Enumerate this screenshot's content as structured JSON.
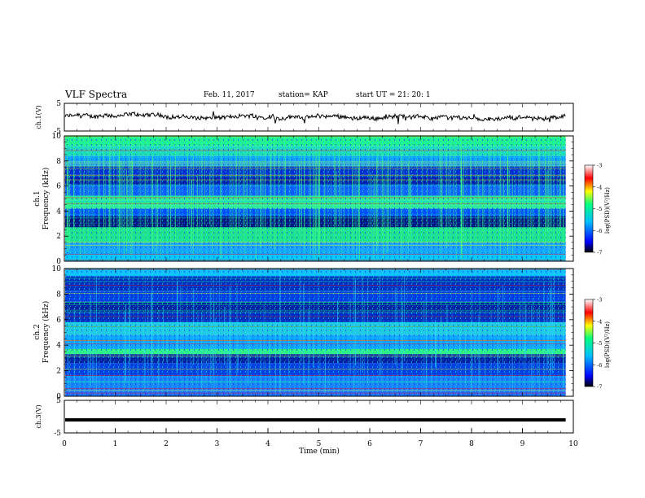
{
  "header": {
    "title": "VLF Spectra",
    "date": "Feb. 11, 2017",
    "station": "station= KAP",
    "start": "start  UT =   21: 20: 1"
  },
  "chart_data": [
    {
      "type": "line",
      "name": "ch1-waveform",
      "ylabel": "ch.1(V)",
      "ylim": [
        -5,
        5
      ],
      "yticks": [
        "5",
        "-5"
      ],
      "x_range_min": [
        0,
        9.85
      ],
      "approx_level": 0.3
    },
    {
      "type": "heatmap",
      "name": "ch1-spectrogram",
      "ylabel": "ch.1\nFrequency (kHz)",
      "ylim": [
        0,
        10
      ],
      "yticks": [
        "0",
        "2",
        "4",
        "6",
        "8",
        "10"
      ],
      "x_range_min": [
        0,
        9.85
      ],
      "colorbar": {
        "label": "log(PSD)(V²/Hz)",
        "range": [
          -7,
          -3
        ],
        "ticks": [
          "-3",
          "-4",
          "-5",
          "-6",
          "-7"
        ],
        "colors": [
          "#000000",
          "#0000ff",
          "#00bfff",
          "#00ff80",
          "#ffff00",
          "#ff0000",
          "#ffffff"
        ]
      }
    },
    {
      "type": "heatmap",
      "name": "ch2-spectrogram",
      "ylabel": "ch.2\nFrequency (kHz)",
      "ylim": [
        0,
        10
      ],
      "yticks": [
        "0",
        "2",
        "4",
        "6",
        "8",
        "10"
      ],
      "x_range_min": [
        0,
        9.85
      ],
      "colorbar": {
        "label": "log(PSD)(V²/Hz)",
        "range": [
          -7,
          -3
        ],
        "ticks": [
          "-3",
          "-4",
          "-5",
          "-6",
          "-7"
        ]
      }
    },
    {
      "type": "line",
      "name": "ch3-waveform",
      "ylabel": "ch.3(V)",
      "ylim": [
        -5,
        5
      ],
      "yticks": [
        "5",
        "-5"
      ],
      "x_range_min": [
        0,
        9.85
      ],
      "approx_level": -1.0,
      "xlabel": "Time  (min)",
      "xlim": [
        0,
        10
      ],
      "xticks": [
        "0",
        "1",
        "2",
        "3",
        "4",
        "5",
        "6",
        "7",
        "8",
        "9",
        "10"
      ]
    }
  ]
}
